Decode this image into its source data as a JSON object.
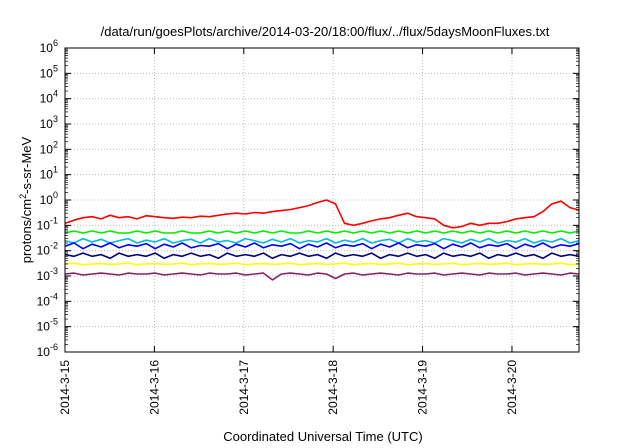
{
  "chart_data": {
    "type": "line",
    "title": "/data/run/goesPlots/archive/2014-03-20/18:00/flux/../flux/5daysMoonFluxes.txt",
    "xlabel": "Coordinated Universal Time (UTC)",
    "ylabel": "protons/cm2-s-sr-MeV",
    "ylabel_parts": {
      "before": "protons/cm",
      "sup": "2",
      "after": "-s-sr-MeV"
    },
    "yscale": "log",
    "ylim_exp": [
      -6,
      6
    ],
    "y_ticks": [
      {
        "base": "10",
        "exp": "-6"
      },
      {
        "base": "10",
        "exp": "-5"
      },
      {
        "base": "10",
        "exp": "-4"
      },
      {
        "base": "10",
        "exp": "-3"
      },
      {
        "base": "10",
        "exp": "-2"
      },
      {
        "base": "10",
        "exp": "-1"
      },
      {
        "base": "10",
        "exp": "0"
      },
      {
        "base": "10",
        "exp": "1"
      },
      {
        "base": "10",
        "exp": "2"
      },
      {
        "base": "10",
        "exp": "3"
      },
      {
        "base": "10",
        "exp": "4"
      },
      {
        "base": "10",
        "exp": "5"
      },
      {
        "base": "10",
        "exp": "6"
      }
    ],
    "x_ticks": [
      "2014-3-15",
      "2014-3-16",
      "2014-3-17",
      "2014-3-18",
      "2014-3-19",
      "2014-3-20"
    ],
    "xlim": [
      "2014-03-15T00:00",
      "2014-03-20T18:00"
    ],
    "grid": true,
    "series": [
      {
        "color": "#ff0000",
        "values": [
          0.12,
          0.16,
          0.2,
          0.22,
          0.18,
          0.25,
          0.2,
          0.22,
          0.18,
          0.24,
          0.22,
          0.2,
          0.19,
          0.21,
          0.2,
          0.23,
          0.22,
          0.25,
          0.28,
          0.3,
          0.28,
          0.32,
          0.3,
          0.35,
          0.38,
          0.42,
          0.5,
          0.6,
          0.8,
          1.0,
          0.7,
          0.12,
          0.1,
          0.12,
          0.15,
          0.18,
          0.2,
          0.25,
          0.3,
          0.22,
          0.2,
          0.18,
          0.1,
          0.08,
          0.09,
          0.12,
          0.1,
          0.12,
          0.12,
          0.14,
          0.18,
          0.2,
          0.22,
          0.35,
          0.7,
          0.9,
          0.5,
          0.4
        ]
      },
      {
        "color": "#00ee00",
        "values": [
          0.05,
          0.06,
          0.05,
          0.06,
          0.05,
          0.06,
          0.05,
          0.05,
          0.06,
          0.05,
          0.06,
          0.05,
          0.05,
          0.06,
          0.05,
          0.05,
          0.06,
          0.05,
          0.06,
          0.05,
          0.06,
          0.05,
          0.06,
          0.05,
          0.06,
          0.05,
          0.05,
          0.06,
          0.05,
          0.06,
          0.05,
          0.06,
          0.05,
          0.06,
          0.05,
          0.06,
          0.05,
          0.06,
          0.05,
          0.06,
          0.05,
          0.06,
          0.05,
          0.06,
          0.05,
          0.06,
          0.05,
          0.06,
          0.05,
          0.06,
          0.05,
          0.06,
          0.05,
          0.06,
          0.05,
          0.06,
          0.05,
          0.06
        ]
      },
      {
        "color": "#00bbdd",
        "values": [
          0.025,
          0.02,
          0.03,
          0.022,
          0.028,
          0.02,
          0.025,
          0.03,
          0.02,
          0.026,
          0.022,
          0.03,
          0.02,
          0.025,
          0.028,
          0.02,
          0.03,
          0.022,
          0.025,
          0.02,
          0.03,
          0.025,
          0.02,
          0.028,
          0.022,
          0.03,
          0.02,
          0.025,
          0.022,
          0.03,
          0.02,
          0.026,
          0.022,
          0.03,
          0.02,
          0.025,
          0.028,
          0.02,
          0.03,
          0.022,
          0.025,
          0.02,
          0.03,
          0.025,
          0.02,
          0.028,
          0.022,
          0.03,
          0.02,
          0.025,
          0.022,
          0.03,
          0.02,
          0.026,
          0.022,
          0.03,
          0.02,
          0.025
        ]
      },
      {
        "color": "#0000ff",
        "values": [
          0.015,
          0.02,
          0.012,
          0.018,
          0.014,
          0.02,
          0.013,
          0.017,
          0.015,
          0.019,
          0.012,
          0.018,
          0.014,
          0.02,
          0.013,
          0.016,
          0.015,
          0.019,
          0.012,
          0.018,
          0.014,
          0.02,
          0.013,
          0.017,
          0.015,
          0.019,
          0.012,
          0.018,
          0.014,
          0.02,
          0.013,
          0.017,
          0.015,
          0.019,
          0.012,
          0.018,
          0.014,
          0.02,
          0.013,
          0.017,
          0.015,
          0.019,
          0.012,
          0.018,
          0.014,
          0.02,
          0.013,
          0.017,
          0.015,
          0.019,
          0.012,
          0.018,
          0.014,
          0.02,
          0.013,
          0.017,
          0.015,
          0.019
        ]
      },
      {
        "color": "#000080",
        "values": [
          0.007,
          0.006,
          0.008,
          0.006,
          0.007,
          0.005,
          0.008,
          0.006,
          0.007,
          0.006,
          0.008,
          0.005,
          0.007,
          0.006,
          0.008,
          0.006,
          0.007,
          0.005,
          0.008,
          0.006,
          0.007,
          0.006,
          0.008,
          0.005,
          0.007,
          0.006,
          0.008,
          0.006,
          0.007,
          0.005,
          0.008,
          0.006,
          0.007,
          0.006,
          0.008,
          0.005,
          0.007,
          0.006,
          0.008,
          0.006,
          0.007,
          0.005,
          0.008,
          0.006,
          0.007,
          0.006,
          0.008,
          0.005,
          0.007,
          0.006,
          0.008,
          0.006,
          0.007,
          0.005,
          0.008,
          0.006,
          0.007,
          0.006
        ]
      },
      {
        "color": "#ffff00",
        "values": [
          0.003,
          0.0032,
          0.0028,
          0.003,
          0.0031,
          0.0029,
          0.003,
          0.0032,
          0.0028,
          0.003,
          0.0031,
          0.0029,
          0.003,
          0.0032,
          0.0028,
          0.003,
          0.0031,
          0.0029,
          0.003,
          0.0032,
          0.0028,
          0.003,
          0.0031,
          0.0029,
          0.003,
          0.0032,
          0.0028,
          0.003,
          0.0031,
          0.0029,
          0.003,
          0.0032,
          0.0028,
          0.003,
          0.0031,
          0.0029,
          0.003,
          0.0032,
          0.0028,
          0.003,
          0.0031,
          0.0029,
          0.003,
          0.0032,
          0.0028,
          0.003,
          0.0031,
          0.0029,
          0.003,
          0.0032,
          0.0028,
          0.003,
          0.0031,
          0.0029,
          0.003,
          0.0032,
          0.0028,
          0.003
        ]
      },
      {
        "color": "#882266",
        "values": [
          0.0012,
          0.0013,
          0.0011,
          0.0012,
          0.0013,
          0.0012,
          0.0011,
          0.0013,
          0.0012,
          0.0012,
          0.0013,
          0.0011,
          0.0012,
          0.0013,
          0.0012,
          0.0011,
          0.0013,
          0.0012,
          0.0012,
          0.0013,
          0.0011,
          0.0012,
          0.0013,
          0.0007,
          0.0012,
          0.0013,
          0.0012,
          0.0011,
          0.0013,
          0.0012,
          0.0008,
          0.0012,
          0.0013,
          0.0011,
          0.0012,
          0.0013,
          0.0012,
          0.0011,
          0.0013,
          0.0012,
          0.0012,
          0.0013,
          0.0011,
          0.0012,
          0.0013,
          0.0012,
          0.0011,
          0.0013,
          0.0012,
          0.0012,
          0.0013,
          0.0011,
          0.0012,
          0.0013,
          0.0012,
          0.0011,
          0.0013,
          0.0012
        ]
      }
    ]
  }
}
